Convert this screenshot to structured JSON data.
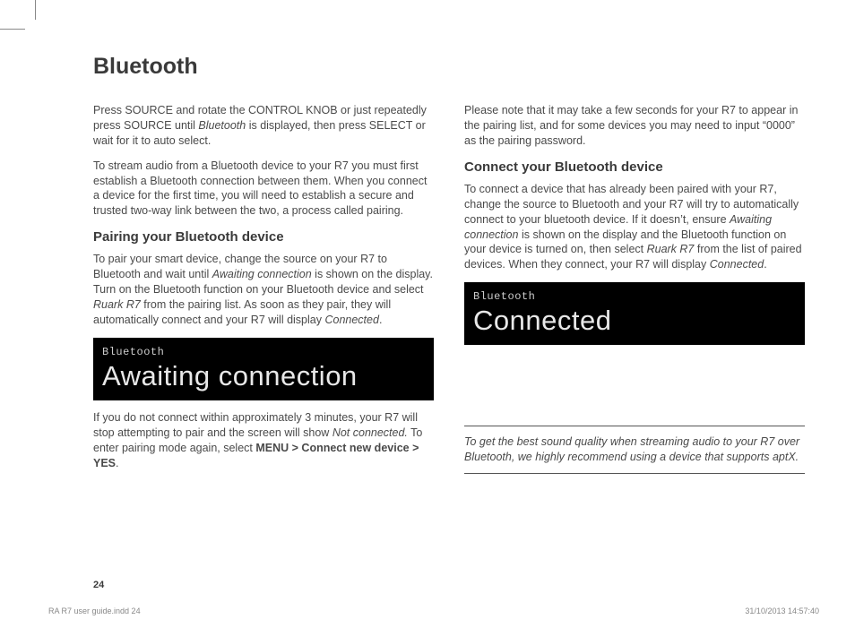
{
  "title": "Bluetooth",
  "col1": {
    "p1_a": "Press SOURCE and rotate the CONTROL KNOB or just repeatedly press SOURCE until ",
    "p1_i": "Bluetooth",
    "p1_b": " is displayed, then press SELECT or wait for it to auto select.",
    "p2": "To stream audio from a Bluetooth device to your R7 you must first establish a Bluetooth connection between them. When you connect a device for the first time, you will need to establish a secure and trusted two-way link between the two, a process called pairing.",
    "h1": "Pairing your Bluetooth device",
    "p3_a": "To pair your smart device, change the source on your R7 to Bluetooth and wait until ",
    "p3_i1": "Awaiting connection",
    "p3_b": " is shown on the display. Turn on the Bluetooth function on your Bluetooth device and select ",
    "p3_i2": "Ruark R7",
    "p3_c": " from the pairing list. As soon as they pair, they will automatically connect and your R7 will display ",
    "p3_i3": "Connected",
    "p3_d": ".",
    "display1_label": "Bluetooth",
    "display1_main": "Awaiting connection",
    "p4_a": "If you do not connect within approximately 3 minutes, your R7 will stop attempting to pair and the screen will show ",
    "p4_i": "Not connected.",
    "p4_b": " To enter pairing mode again, select ",
    "p4_bold": "MENU > Connect new device > YES",
    "p4_c": "."
  },
  "col2": {
    "p1": "Please note that it may take a few seconds for your R7 to appear in the pairing list, and for some devices you may need to input “0000” as the pairing password.",
    "h1": "Connect your Bluetooth device",
    "p2_a": "To connect a device that has already been paired with your R7, change the source to Bluetooth and your R7 will try to automatically connect to your bluetooth device. If it doesn’t, ensure ",
    "p2_i1": "Awaiting connection",
    "p2_b": " is shown on the display and the Bluetooth function on your device is turned on, then select ",
    "p2_i2": "Ruark R7",
    "p2_c": " from the list of paired devices. When they connect, your R7 will display ",
    "p2_i3": "Connected",
    "p2_d": ".",
    "display2_label": "Bluetooth",
    "display2_main": "Connected",
    "tip": "To get the best sound quality when streaming audio to your R7 over Bluetooth, we highly recommend using a device that supports aptX."
  },
  "page_number": "24",
  "footer_left": "RA R7 user guide.indd   24",
  "footer_right": "31/10/2013   14:57:40"
}
